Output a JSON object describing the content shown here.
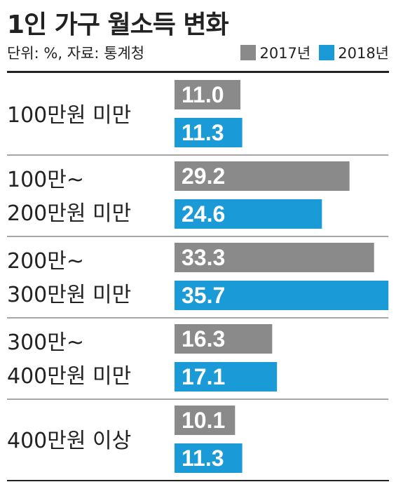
{
  "header": {
    "title": "1인 가구 월소득 변화",
    "source": "단위: %, 자료: 통계청"
  },
  "colors": {
    "y2017": "#8a8a8a",
    "y2018": "#1a9ad6",
    "divider": "#888888"
  },
  "chart_data": {
    "type": "bar",
    "orientation": "horizontal",
    "title": "1인 가구 월소득 변화",
    "unit": "%",
    "categories": [
      [
        "100만원 미만"
      ],
      [
        "100만~",
        "200만원 미만"
      ],
      [
        "200만~",
        "300만원 미만"
      ],
      [
        "300만~",
        "400만원 미만"
      ],
      [
        "400만원 이상"
      ]
    ],
    "series": [
      {
        "name": "2017년",
        "values": [
          11.0,
          29.2,
          33.3,
          16.3,
          10.1
        ],
        "labels": [
          "11.0",
          "29.2",
          "33.3",
          "16.3",
          "10.1"
        ]
      },
      {
        "name": "2018년",
        "values": [
          11.3,
          24.6,
          35.7,
          17.1,
          11.3
        ],
        "labels": [
          "11.3",
          "24.6",
          "35.7",
          "17.1",
          "11.3"
        ]
      }
    ],
    "legend_position": "top-right",
    "grid": false
  }
}
